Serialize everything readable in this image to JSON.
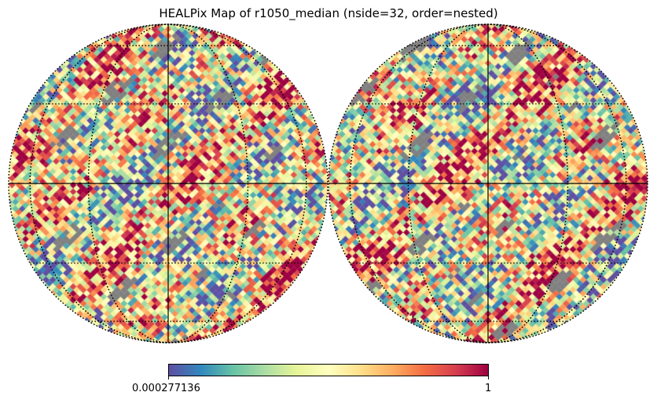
{
  "title": "HEALPix Map of r1050_median (nside=32, order=nested)",
  "projection": "orthographic",
  "colormap": {
    "name": "Spectral_r",
    "stops": [
      "#5e4fa2",
      "#3288bd",
      "#66c2a5",
      "#abdda4",
      "#e6f598",
      "#ffffbf",
      "#fee08b",
      "#fdae61",
      "#f46d43",
      "#d53e4f",
      "#9e0142"
    ],
    "bad_color": "#808080"
  },
  "colorbar": {
    "min_label": "0.000277136",
    "max_label": "1",
    "min": 0.000277136,
    "max": 1
  },
  "graticule": {
    "parallels_deg": [
      -60,
      -30,
      0,
      30,
      60
    ],
    "meridians_deg": [
      -90,
      -60,
      -30,
      0,
      30,
      60,
      90
    ]
  }
}
